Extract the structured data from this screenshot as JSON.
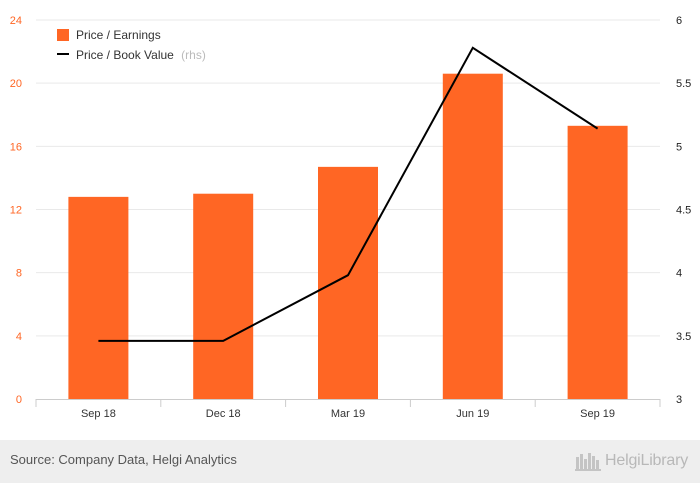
{
  "chart_data": {
    "type": "bar",
    "categories": [
      "Sep 18",
      "Dec 18",
      "Mar 19",
      "Jun 19",
      "Sep 19"
    ],
    "series": [
      {
        "name": "Price / Earnings",
        "type": "bar",
        "axis": "left",
        "color": "#ff6624",
        "values": [
          12.8,
          13.0,
          14.7,
          20.6,
          17.3
        ]
      },
      {
        "name": "Price / Book Value",
        "type": "line",
        "axis": "right",
        "color": "#000000",
        "values": [
          3.46,
          3.46,
          3.98,
          5.78,
          5.14
        ]
      }
    ],
    "y_left": {
      "ylim": [
        0,
        24
      ],
      "ticks": [
        "0",
        "4",
        "8",
        "12",
        "16",
        "20",
        "24"
      ]
    },
    "y_right": {
      "ylim": [
        3,
        6
      ],
      "ticks": [
        "3",
        "3.5",
        "4",
        "4.5",
        "5",
        "5.5",
        "6"
      ]
    },
    "grid": "horizontal",
    "legend_position": "top-left"
  },
  "legend": {
    "pe_label": "Price / Earnings",
    "pbv_label": "Price / Book Value",
    "pbv_suffix": "(rhs)"
  },
  "footer": {
    "source": "Source: Company Data, Helgi Analytics",
    "brand": "HelgiLibrary"
  }
}
